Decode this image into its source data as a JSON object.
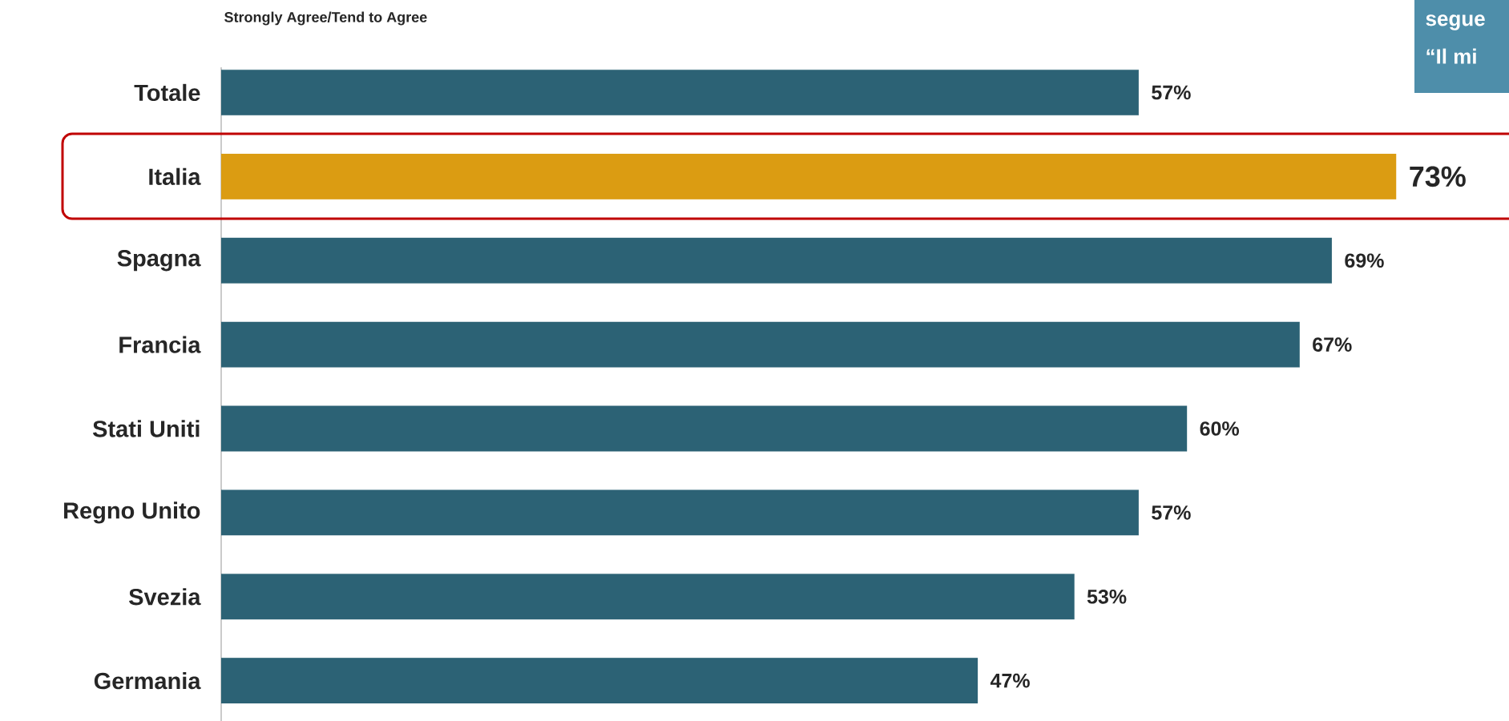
{
  "chart_data": {
    "type": "bar",
    "orientation": "horizontal",
    "title": "Strongly Agree/Tend to Agree",
    "categories": [
      "Totale",
      "Italia",
      "Spagna",
      "Francia",
      "Stati Uniti",
      "Regno Unito",
      "Svezia",
      "Germania"
    ],
    "values": [
      57,
      73,
      69,
      67,
      60,
      57,
      53,
      47
    ],
    "colors": [
      "#2c6275",
      "#db9c12",
      "#2c6275",
      "#2c6275",
      "#2c6275",
      "#2c6275",
      "#2c6275",
      "#2c6275"
    ],
    "value_labels": [
      "57%",
      "73%",
      "69%",
      "67%",
      "60%",
      "57%",
      "53%",
      "47%"
    ],
    "tick_labels": "y",
    "annotations": [
      "segue",
      "“Il mi"
    ]
  }
}
